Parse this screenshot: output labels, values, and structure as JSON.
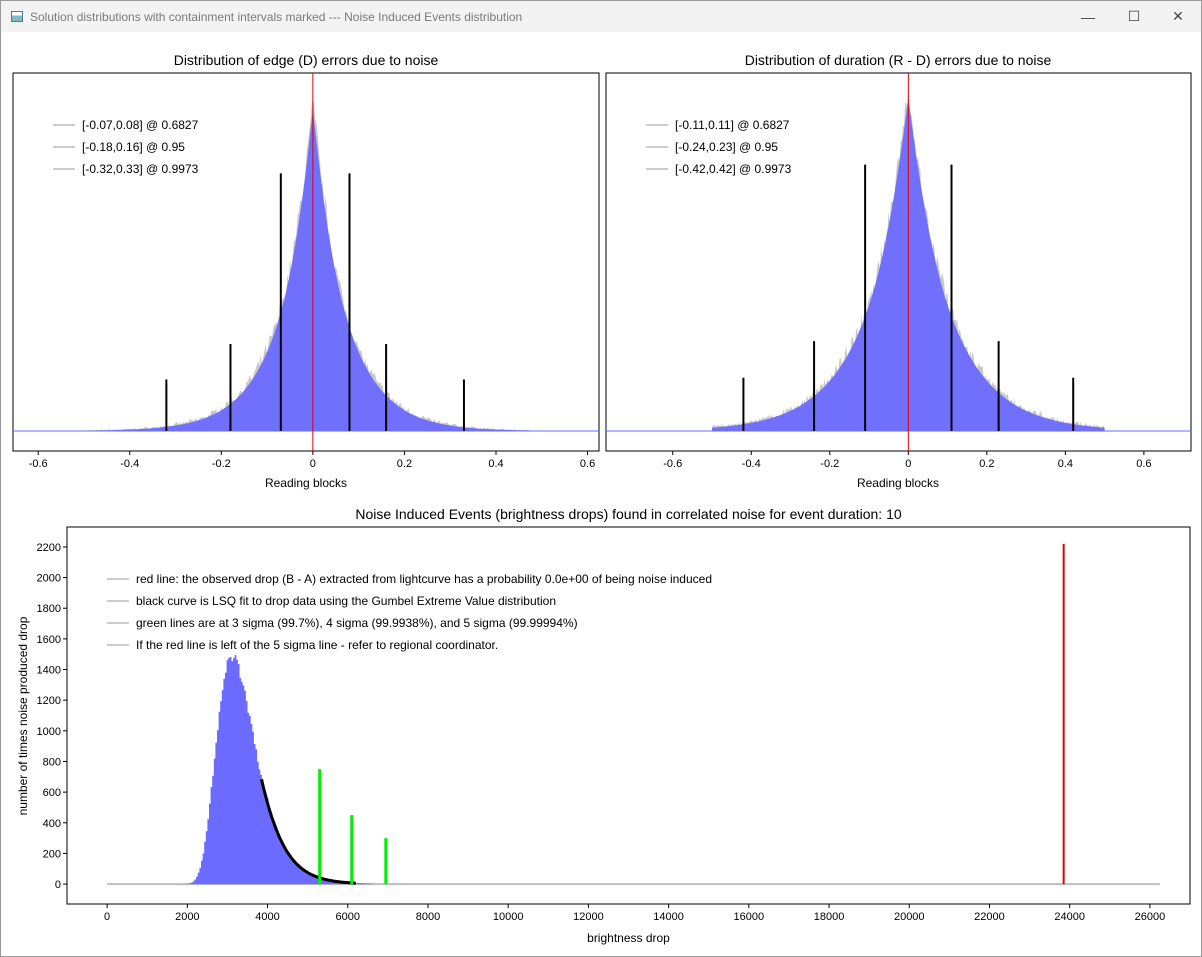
{
  "window": {
    "title": "Solution distributions with containment intervals marked --- Noise Induced Events distribution",
    "minimize_glyph": "—",
    "maximize_glyph": "☐",
    "close_glyph": "✕"
  },
  "colors": {
    "histogram": "#6b6bff",
    "histogram_edge": "#c8c8c8",
    "red_line": "#e00000",
    "green_line": "#00ee00",
    "fit_curve": "#000000"
  },
  "chart_data": [
    {
      "type": "bar",
      "title": "Distribution of edge (D) errors due to noise",
      "xlabel": "Reading blocks",
      "ylabel": "",
      "xlim": [
        -0.655,
        0.625
      ],
      "xticks": [
        -0.6,
        -0.4,
        -0.2,
        0.0,
        0.2,
        0.4,
        0.6
      ],
      "xtick_labels": [
        "-0.6",
        "-0.4",
        "-0.2",
        "0",
        "0.2",
        "0.4",
        "0.6"
      ],
      "distribution": {
        "center": 0.0,
        "sigma": 0.075,
        "peak_relative": 1.0
      },
      "observed_line_x": 0.0,
      "intervals": [
        {
          "label": "[-0.07,0.08] @ 0.6827",
          "low": -0.07,
          "high": 0.08,
          "relative_height": 0.8
        },
        {
          "label": "[-0.18,0.16] @ 0.95",
          "low": -0.18,
          "high": 0.16,
          "relative_height": 0.27
        },
        {
          "label": "[-0.32,0.33] @ 0.9973",
          "low": -0.32,
          "high": 0.33,
          "relative_height": 0.16
        }
      ],
      "legend_placement": "top-left",
      "grid": false
    },
    {
      "type": "bar",
      "title": "Distribution of duration (R - D) errors due to noise",
      "xlabel": "Reading blocks",
      "ylabel": "",
      "xlim": [
        -0.77,
        0.72
      ],
      "xticks": [
        -0.6,
        -0.4,
        -0.2,
        0.0,
        0.2,
        0.4,
        0.6
      ],
      "xtick_labels": [
        "-0.6",
        "-0.4",
        "-0.2",
        "0",
        "0.2",
        "0.4",
        "0.6"
      ],
      "distribution": {
        "center": 0.0,
        "sigma": 0.11,
        "peak_relative": 1.0
      },
      "observed_line_x": 0.0,
      "intervals": [
        {
          "label": "[-0.11,0.11] @ 0.6827",
          "low": -0.11,
          "high": 0.11,
          "relative_height": 0.8
        },
        {
          "label": "[-0.24,0.23] @ 0.95",
          "low": -0.24,
          "high": 0.23,
          "relative_height": 0.27
        },
        {
          "label": "[-0.42,0.42] @ 0.9973",
          "low": -0.42,
          "high": 0.42,
          "relative_height": 0.16
        }
      ],
      "legend_placement": "top-left",
      "grid": false
    },
    {
      "type": "bar",
      "title": "Noise Induced Events (brightness drops) found in correlated noise for event duration: 10",
      "xlabel": "brightness drop",
      "ylabel": "number of times noise produced drop",
      "xlim": [
        -1000,
        27000
      ],
      "ylim": [
        -130,
        2330
      ],
      "xticks": [
        0,
        2000,
        4000,
        6000,
        8000,
        10000,
        12000,
        14000,
        16000,
        18000,
        20000,
        22000,
        24000,
        26000
      ],
      "xtick_labels": [
        "0",
        "2000",
        "4000",
        "6000",
        "8000",
        "10000",
        "12000",
        "14000",
        "16000",
        "18000",
        "20000",
        "22000",
        "24000",
        "26000"
      ],
      "yticks": [
        0,
        200,
        400,
        600,
        800,
        1000,
        1200,
        1400,
        1600,
        1800,
        2000,
        2200
      ],
      "ytick_labels": [
        "0",
        "200",
        "400",
        "600",
        "800",
        "1000",
        "1200",
        "1400",
        "1600",
        "1800",
        "2000",
        "2200"
      ],
      "histogram": {
        "mode": 3100,
        "beta": 480,
        "peak": 1480,
        "range": [
          1500,
          6600
        ]
      },
      "fit_curve": {
        "x_start": 3850,
        "x_end": 6200
      },
      "observed_drop": {
        "x": 23850,
        "height": 2220
      },
      "sigma_lines": [
        {
          "name": "3 sigma",
          "x": 5300,
          "height": 750
        },
        {
          "name": "4 sigma",
          "x": 6100,
          "height": 450
        },
        {
          "name": "5 sigma",
          "x": 6950,
          "height": 300
        }
      ],
      "baseline_range": [
        0,
        26250
      ],
      "legend": [
        "red line: the observed drop (B - A) extracted from lightcurve has a probability 0.0e+00 of being noise induced",
        "black curve is LSQ fit to drop data using the Gumbel Extreme Value distribution",
        "green lines are at 3 sigma (99.7%), 4 sigma (99.9938%), and 5 sigma (99.99994%)",
        "If the red line is left of the 5 sigma line - refer to regional coordinator."
      ],
      "legend_placement": "top-left",
      "grid": false
    }
  ]
}
